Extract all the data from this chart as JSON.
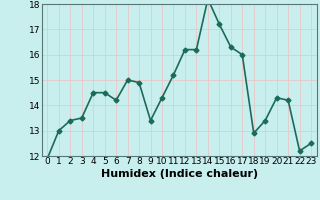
{
  "x": [
    0,
    1,
    2,
    3,
    4,
    5,
    6,
    7,
    8,
    9,
    10,
    11,
    12,
    13,
    14,
    15,
    16,
    17,
    18,
    19,
    20,
    21,
    22,
    23
  ],
  "y": [
    11.9,
    13.0,
    13.4,
    13.5,
    14.5,
    14.5,
    14.2,
    15.0,
    14.9,
    13.4,
    14.3,
    15.2,
    16.2,
    16.2,
    18.2,
    17.2,
    16.3,
    16.0,
    12.9,
    13.4,
    14.3,
    14.2,
    12.2,
    12.5
  ],
  "xlabel": "Humidex (Indice chaleur)",
  "ylim": [
    12,
    18
  ],
  "xlim_min": -0.5,
  "xlim_max": 23.5,
  "yticks": [
    12,
    13,
    14,
    15,
    16,
    17,
    18
  ],
  "xticks": [
    0,
    1,
    2,
    3,
    4,
    5,
    6,
    7,
    8,
    9,
    10,
    11,
    12,
    13,
    14,
    15,
    16,
    17,
    18,
    19,
    20,
    21,
    22,
    23
  ],
  "line_color": "#1a6b5a",
  "marker": "D",
  "marker_size": 2.5,
  "bg_color": "#c8eeee",
  "grid_color": "#e8c8c8",
  "tick_label_fontsize": 6.5,
  "xlabel_fontsize": 8,
  "linewidth": 1.2
}
